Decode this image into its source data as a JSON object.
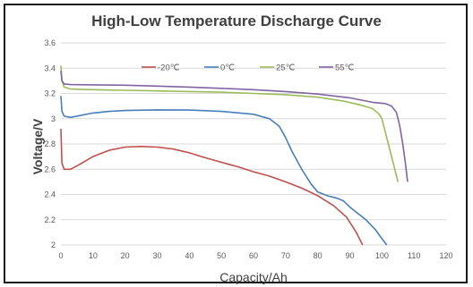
{
  "chart_data": {
    "type": "line",
    "title": "High-Low Temperature Discharge Curve",
    "xlabel": "Capacity/Ah",
    "ylabel": "Voltage/V",
    "xlim": [
      0,
      120
    ],
    "ylim": [
      2,
      3.6
    ],
    "xticks": [
      "0",
      "10",
      "20",
      "30",
      "40",
      "50",
      "60",
      "70",
      "80",
      "90",
      "100",
      "110",
      "120"
    ],
    "yticks": [
      "2",
      "2.2",
      "2.4",
      "2.6",
      "2.8",
      "3",
      "3.2",
      "3.4",
      "3.6"
    ],
    "grid": "horizontal",
    "legend_position": "top",
    "series": [
      {
        "name": "-20℃",
        "color": "#c0504d",
        "points": [
          [
            0,
            2.92
          ],
          [
            0.3,
            2.65
          ],
          [
            1,
            2.6
          ],
          [
            3,
            2.6
          ],
          [
            6,
            2.64
          ],
          [
            10,
            2.7
          ],
          [
            15,
            2.75
          ],
          [
            20,
            2.775
          ],
          [
            25,
            2.78
          ],
          [
            30,
            2.775
          ],
          [
            35,
            2.76
          ],
          [
            40,
            2.73
          ],
          [
            45,
            2.69
          ],
          [
            50,
            2.655
          ],
          [
            55,
            2.62
          ],
          [
            60,
            2.58
          ],
          [
            65,
            2.545
          ],
          [
            70,
            2.5
          ],
          [
            75,
            2.45
          ],
          [
            80,
            2.39
          ],
          [
            85,
            2.31
          ],
          [
            89,
            2.22
          ],
          [
            92,
            2.1
          ],
          [
            94,
            2.0
          ]
        ]
      },
      {
        "name": "0℃",
        "color": "#4a7ebb",
        "points": [
          [
            0,
            3.18
          ],
          [
            0.3,
            3.06
          ],
          [
            1,
            3.02
          ],
          [
            3,
            3.01
          ],
          [
            6,
            3.025
          ],
          [
            10,
            3.045
          ],
          [
            15,
            3.058
          ],
          [
            20,
            3.065
          ],
          [
            30,
            3.07
          ],
          [
            40,
            3.068
          ],
          [
            50,
            3.058
          ],
          [
            60,
            3.035
          ],
          [
            65,
            3.0
          ],
          [
            68,
            2.94
          ],
          [
            70,
            2.85
          ],
          [
            72,
            2.74
          ],
          [
            75,
            2.6
          ],
          [
            78,
            2.48
          ],
          [
            80,
            2.42
          ],
          [
            83,
            2.39
          ],
          [
            86,
            2.37
          ],
          [
            88,
            2.35
          ],
          [
            90,
            2.3
          ],
          [
            95,
            2.2
          ],
          [
            98,
            2.12
          ],
          [
            100,
            2.05
          ],
          [
            101.5,
            2.0
          ]
        ]
      },
      {
        "name": "25℃",
        "color": "#9bbb59",
        "points": [
          [
            0,
            3.42
          ],
          [
            0.3,
            3.3
          ],
          [
            1,
            3.25
          ],
          [
            3,
            3.235
          ],
          [
            10,
            3.23
          ],
          [
            20,
            3.225
          ],
          [
            30,
            3.22
          ],
          [
            40,
            3.215
          ],
          [
            50,
            3.21
          ],
          [
            60,
            3.2
          ],
          [
            70,
            3.19
          ],
          [
            80,
            3.17
          ],
          [
            88,
            3.14
          ],
          [
            93,
            3.11
          ],
          [
            97,
            3.08
          ],
          [
            99,
            3.04
          ],
          [
            100,
            3.0
          ],
          [
            101,
            2.9
          ],
          [
            102,
            2.8
          ],
          [
            103,
            2.7
          ],
          [
            104,
            2.6
          ],
          [
            105,
            2.5
          ]
        ]
      },
      {
        "name": "55℃",
        "color": "#8064a2",
        "points": [
          [
            0,
            3.38
          ],
          [
            0.3,
            3.3
          ],
          [
            1,
            3.275
          ],
          [
            3,
            3.27
          ],
          [
            10,
            3.268
          ],
          [
            20,
            3.265
          ],
          [
            30,
            3.258
          ],
          [
            40,
            3.25
          ],
          [
            50,
            3.24
          ],
          [
            60,
            3.23
          ],
          [
            70,
            3.215
          ],
          [
            80,
            3.195
          ],
          [
            90,
            3.165
          ],
          [
            97,
            3.13
          ],
          [
            101,
            3.12
          ],
          [
            103,
            3.1
          ],
          [
            104.5,
            3.05
          ],
          [
            105.5,
            2.95
          ],
          [
            106.5,
            2.8
          ],
          [
            107.3,
            2.65
          ],
          [
            108,
            2.5
          ]
        ]
      }
    ]
  }
}
